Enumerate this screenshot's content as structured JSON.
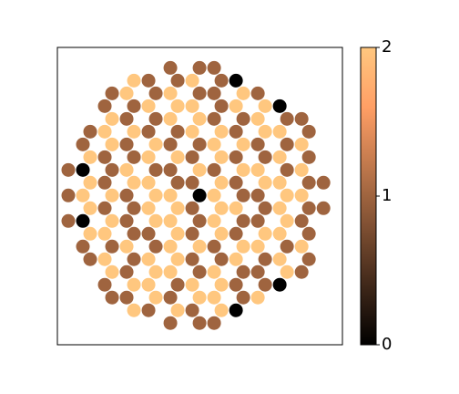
{
  "chart_data": {
    "type": "scatter",
    "colormap": "copper",
    "clim": [
      0,
      2
    ],
    "cticks": [
      0,
      1,
      2
    ],
    "xlim": [
      -9.75,
      9.8
    ],
    "ylim": [
      -11.7,
      11.6
    ],
    "x": [
      -2,
      0,
      1,
      -4.5,
      -3.5,
      -1.5,
      -0.5,
      1.5,
      2.5,
      -6,
      -5,
      -3,
      -2,
      0,
      1,
      3,
      4,
      -6.5,
      -4.5,
      -3.5,
      -1.5,
      -0.5,
      1.5,
      2.5,
      4.5,
      5.5,
      -6,
      -5,
      -3,
      -2,
      0,
      1,
      3,
      4,
      6,
      7,
      -7.5,
      -6.5,
      -4.5,
      -3.5,
      -1.5,
      -0.5,
      1.5,
      2.5,
      4.5,
      5.5,
      7.5,
      -8,
      -6,
      -5,
      -3,
      -2,
      0,
      1,
      3,
      4,
      6,
      7,
      -7.5,
      -6.5,
      -4.5,
      -3.5,
      -1.5,
      -0.5,
      1.5,
      2.5,
      4.5,
      5.5,
      7.5,
      -9,
      -8,
      -6,
      -5,
      -3,
      -2,
      0,
      1,
      3,
      4,
      6,
      7,
      -7.5,
      -6.5,
      -4.5,
      -3.5,
      -1.5,
      -0.5,
      1.5,
      2.5,
      4.5,
      5.5,
      7.5,
      8.5,
      -9,
      -8,
      -6,
      -5,
      -3,
      -2,
      0,
      1,
      3,
      4,
      6,
      7,
      -7.5,
      -6.5,
      -4.5,
      -3.5,
      -1.5,
      -0.5,
      1.5,
      2.5,
      4.5,
      5.5,
      7.5,
      8.5,
      -9,
      -8,
      -6,
      -5,
      -3,
      -2,
      0,
      1,
      3,
      4,
      6,
      7,
      -7.5,
      -6.5,
      -4.5,
      -3.5,
      -1.5,
      -0.5,
      1.5,
      2.5,
      4.5,
      5.5,
      7.5,
      -8,
      -6,
      -5,
      -3,
      -2,
      0,
      1,
      3,
      4,
      6,
      7,
      -7.5,
      -6.5,
      -4.5,
      -3.5,
      -1.5,
      -0.5,
      1.5,
      2.5,
      4.5,
      5.5,
      7.5,
      -6,
      -5,
      -3,
      -2,
      0,
      1,
      3,
      4,
      6,
      7,
      -6.5,
      -4.5,
      -3.5,
      -1.5,
      -0.5,
      1.5,
      2.5,
      4.5,
      5.5,
      -6,
      -5,
      -3,
      -2,
      0,
      1,
      3,
      4,
      -4.5,
      -3.5,
      -1.5,
      -0.5,
      1.5,
      2.5,
      -2,
      0,
      1
    ],
    "y": [
      10,
      10,
      10,
      9,
      9,
      9,
      9,
      9,
      9,
      8,
      8,
      8,
      8,
      8,
      8,
      8,
      8,
      7,
      7,
      7,
      7,
      7,
      7,
      7,
      7,
      7,
      6,
      6,
      6,
      6,
      6,
      6,
      6,
      6,
      6,
      6,
      5,
      5,
      5,
      5,
      5,
      5,
      5,
      5,
      5,
      5,
      5,
      4,
      4,
      4,
      4,
      4,
      4,
      4,
      4,
      4,
      4,
      4,
      3,
      3,
      3,
      3,
      3,
      3,
      3,
      3,
      3,
      3,
      3,
      2,
      2,
      2,
      2,
      2,
      2,
      2,
      2,
      2,
      2,
      2,
      2,
      1,
      1,
      1,
      1,
      1,
      1,
      1,
      1,
      1,
      1,
      1,
      1,
      0,
      0,
      0,
      0,
      0,
      0,
      0,
      0,
      0,
      0,
      0,
      0,
      -1,
      -1,
      -1,
      -1,
      -1,
      -1,
      -1,
      -1,
      -1,
      -1,
      -1,
      -1,
      -2,
      -2,
      -2,
      -2,
      -2,
      -2,
      -2,
      -2,
      -2,
      -2,
      -2,
      -2,
      -3,
      -3,
      -3,
      -3,
      -3,
      -3,
      -3,
      -3,
      -3,
      -3,
      -3,
      -4,
      -4,
      -4,
      -4,
      -4,
      -4,
      -4,
      -4,
      -4,
      -4,
      -4,
      -5,
      -5,
      -5,
      -5,
      -5,
      -5,
      -5,
      -5,
      -5,
      -5,
      -5,
      -6,
      -6,
      -6,
      -6,
      -6,
      -6,
      -6,
      -6,
      -6,
      -6,
      -7,
      -7,
      -7,
      -7,
      -7,
      -7,
      -7,
      -7,
      -7,
      -8,
      -8,
      -8,
      -8,
      -8,
      -8,
      -8,
      -8,
      -9,
      -9,
      -9,
      -9,
      -9,
      -9,
      -10,
      -10,
      -10
    ],
    "values": [
      1,
      1,
      1,
      2,
      1,
      1,
      2,
      1,
      0,
      1,
      2,
      1,
      2,
      1,
      1,
      2,
      1,
      1,
      1,
      2,
      2,
      2,
      1,
      2,
      2,
      0,
      2,
      1,
      1,
      2,
      2,
      1,
      1,
      2,
      1,
      1,
      1,
      2,
      2,
      1,
      1,
      2,
      2,
      1,
      2,
      2,
      1,
      1,
      2,
      1,
      2,
      1,
      1,
      2,
      2,
      1,
      1,
      2,
      2,
      1,
      1,
      2,
      2,
      1,
      2,
      1,
      1,
      2,
      1,
      1,
      0,
      1,
      2,
      1,
      1,
      2,
      1,
      2,
      2,
      1,
      2,
      2,
      1,
      2,
      2,
      1,
      1,
      2,
      1,
      2,
      2,
      1,
      1,
      1,
      2,
      2,
      1,
      2,
      2,
      0,
      2,
      1,
      1,
      2,
      2,
      2,
      1,
      1,
      2,
      2,
      1,
      2,
      2,
      1,
      2,
      1,
      1,
      1,
      0,
      2,
      1,
      2,
      2,
      1,
      2,
      1,
      1,
      2,
      1,
      2,
      2,
      1,
      1,
      2,
      1,
      2,
      1,
      2,
      2,
      1,
      1,
      1,
      2,
      1,
      2,
      2,
      1,
      2,
      2,
      1,
      2,
      1,
      2,
      1,
      2,
      2,
      1,
      1,
      2,
      1,
      2,
      1,
      2,
      1,
      2,
      2,
      1,
      2,
      1,
      1,
      2,
      1,
      1,
      2,
      2,
      1,
      2,
      2,
      1,
      1,
      0,
      1,
      1,
      2,
      1,
      2,
      2,
      1,
      2,
      2,
      1,
      2,
      1,
      2,
      0,
      1,
      1,
      1
    ]
  }
}
